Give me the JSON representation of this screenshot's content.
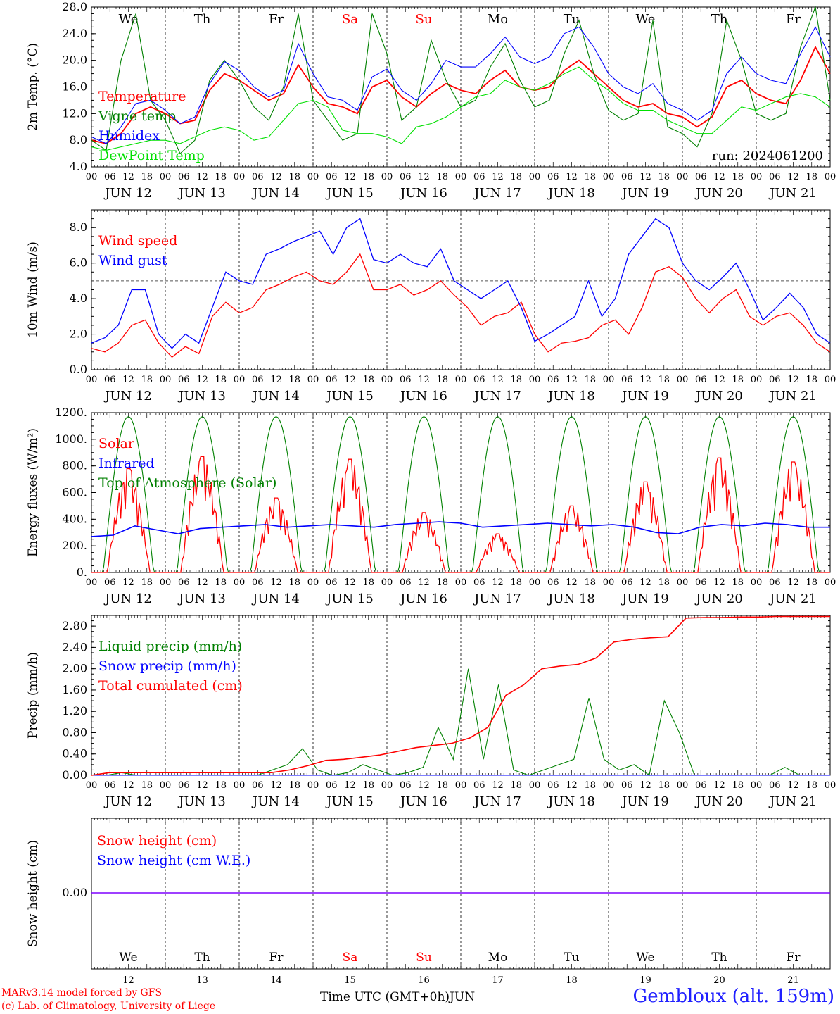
{
  "colors": {
    "red": "#ff0000",
    "green": "#008000",
    "blue": "#0000ff",
    "lightgreen": "#00e000",
    "purple": "#7f00ff"
  },
  "day_labels": [
    "We",
    "Th",
    "Fr",
    "Sa",
    "Su",
    "Mo",
    "Tu",
    "We",
    "Th",
    "Fr"
  ],
  "day_label_colors": [
    "#000",
    "#000",
    "#000",
    "#ff0000",
    "#ff0000",
    "#000",
    "#000",
    "#000",
    "#000",
    "#000"
  ],
  "date_labels": [
    "JUN 12",
    "JUN 13",
    "JUN 14",
    "JUN 15",
    "JUN 16",
    "JUN 17",
    "JUN 18",
    "JUN 19",
    "JUN 20",
    "JUN 21"
  ],
  "hour_ticks": [
    "00",
    "06",
    "12",
    "18"
  ],
  "day_numbers": [
    "12",
    "13",
    "14",
    "15",
    "16",
    "17",
    "18",
    "19",
    "20",
    "21"
  ],
  "footer": {
    "model": "MARv3.14 model forced by GFS",
    "lab": "(c) Lab. of Climatology, University of Liege",
    "time_label": "Time UTC (GMT+0h)",
    "month": "JUN",
    "station": "Gembloux (alt. 159m)"
  },
  "chart_data": [
    {
      "type": "line",
      "ylabel": "2m Temp. (°C)",
      "ylim": [
        4,
        28
      ],
      "yticks": [
        "4.0",
        "8.0",
        "12.0",
        "16.0",
        "20.0",
        "24.0",
        "28.0"
      ],
      "run_label": "run: 2024061200",
      "series": [
        {
          "name": "Temperature",
          "color": "#ff0000",
          "values": [
            8,
            7.5,
            9,
            12,
            13,
            12,
            10.5,
            11,
            15.5,
            18,
            17,
            15.5,
            14,
            15,
            19.3,
            16,
            13.5,
            13,
            12,
            16,
            17,
            14.5,
            13,
            15,
            16.5,
            15.5,
            15,
            17,
            18.5,
            16,
            15.5,
            16,
            18.5,
            20,
            18,
            16,
            14,
            13,
            13.5,
            12,
            11.5,
            10,
            11.5,
            16,
            17,
            15,
            14,
            13.5,
            17,
            22,
            18
          ]
        },
        {
          "name": "Vigne temp",
          "color": "#008000",
          "values": [
            8,
            6.5,
            20,
            27,
            14,
            11,
            6,
            8,
            17,
            20,
            17,
            13,
            11,
            16,
            27,
            14,
            11,
            8,
            9,
            27,
            21,
            11,
            13,
            23,
            17,
            13,
            14,
            19,
            22.5,
            17,
            13,
            14,
            21,
            26,
            18,
            12.5,
            11,
            12,
            26,
            10,
            9,
            7,
            12,
            26,
            20,
            12,
            11,
            12,
            22,
            28,
            14
          ]
        },
        {
          "name": "Humidex",
          "color": "#0000ff",
          "values": [
            8.5,
            7.5,
            10,
            13.5,
            14,
            12.5,
            10.5,
            11.5,
            16.5,
            19.8,
            18.5,
            16,
            14.5,
            15.5,
            22.5,
            18,
            14.5,
            14,
            12.5,
            17.5,
            18.7,
            15.5,
            14,
            16.5,
            20,
            19,
            19,
            21,
            23.5,
            20.5,
            19.5,
            20.5,
            24,
            25,
            22,
            18,
            16,
            15,
            16.5,
            13.5,
            12.5,
            11,
            12.5,
            18,
            20.5,
            18,
            17,
            16.5,
            21,
            25,
            20.5
          ]
        },
        {
          "name": "DewPoint Temp",
          "color": "#00e000",
          "values": [
            7,
            6.5,
            7,
            7.5,
            8,
            8,
            7.5,
            8.5,
            9.5,
            10,
            9.5,
            8,
            8.5,
            11,
            13.5,
            14,
            13,
            9.5,
            9,
            9,
            8.5,
            7.5,
            10,
            10.5,
            11.5,
            13,
            14.5,
            15,
            17,
            16,
            15.5,
            16.5,
            18,
            19,
            17,
            15.5,
            13.5,
            12.5,
            12.5,
            11,
            10,
            9,
            9,
            11,
            13,
            12.5,
            13.5,
            14.5,
            15,
            14.5,
            13
          ]
        }
      ]
    },
    {
      "type": "line",
      "ylabel": "10m Wind (m/s)",
      "ylim": [
        0,
        9
      ],
      "yticks": [
        "0.0",
        "2.0",
        "4.0",
        "6.0",
        "8.0"
      ],
      "reference_line": 5,
      "series": [
        {
          "name": "Wind speed",
          "color": "#ff0000",
          "values": [
            1.2,
            1.0,
            1.5,
            2.5,
            2.8,
            1.5,
            0.7,
            1.3,
            0.9,
            3.0,
            3.8,
            3.2,
            3.5,
            4.5,
            4.8,
            5.2,
            5.5,
            5.0,
            4.8,
            5.5,
            6.5,
            4.5,
            4.5,
            4.8,
            4.2,
            4.5,
            5.0,
            4.2,
            3.5,
            2.5,
            3.0,
            3.2,
            3.8,
            2.0,
            1.0,
            1.5,
            1.6,
            1.8,
            2.5,
            2.8,
            2.0,
            3.5,
            5.5,
            5.8,
            5.2,
            4.0,
            3.2,
            4.0,
            4.5,
            3.0,
            2.5,
            3.0,
            3.2,
            2.5,
            1.5,
            1.0
          ]
        },
        {
          "name": "Wind gust",
          "color": "#0000ff",
          "values": [
            1.5,
            1.8,
            2.5,
            4.5,
            4.5,
            2.0,
            1.2,
            2.0,
            1.5,
            3.5,
            5.5,
            5.0,
            4.8,
            6.5,
            6.8,
            7.2,
            7.5,
            7.8,
            6.5,
            8.0,
            8.5,
            6.2,
            6.0,
            6.5,
            6.0,
            5.8,
            6.8,
            5.0,
            4.5,
            4.0,
            4.5,
            5.0,
            3.5,
            1.6,
            2.0,
            2.5,
            3.0,
            5.0,
            3.0,
            4.0,
            6.5,
            7.5,
            8.5,
            8.0,
            6.0,
            5.0,
            4.5,
            5.2,
            6.0,
            4.5,
            2.8,
            3.5,
            4.3,
            3.5,
            2.0,
            1.5
          ]
        }
      ]
    },
    {
      "type": "line",
      "ylabel": "Energy fluxes (W/m²)",
      "ylim": [
        0,
        1200
      ],
      "yticks": [
        "0.",
        "200.",
        "400.",
        "600.",
        "800.",
        "1000.",
        "1200."
      ],
      "series": [
        {
          "name": "Solar",
          "color": "#ff0000",
          "peaks": [
            780,
            870,
            560,
            850,
            450,
            290,
            500,
            680,
            860,
            830
          ]
        },
        {
          "name": "Infrared",
          "color": "#0000ff",
          "values": [
            270,
            280,
            350,
            320,
            290,
            330,
            340,
            350,
            360,
            340,
            350,
            360,
            350,
            340,
            360,
            370,
            380,
            370,
            340,
            350,
            360,
            370,
            360,
            350,
            360,
            340,
            300,
            290,
            340,
            360,
            350,
            370,
            360,
            340,
            340
          ]
        },
        {
          "name": "Top of Atmosphere (Solar)",
          "color": "#008000",
          "peak": 1170
        }
      ]
    },
    {
      "type": "line",
      "ylabel": "Precip (mm/h)",
      "ylim": [
        0,
        3.0
      ],
      "yticks": [
        "0.00",
        "0.40",
        "0.80",
        "1.20",
        "1.60",
        "2.00",
        "2.40",
        "2.80"
      ],
      "series": [
        {
          "name": "Liquid precip (mm/h)",
          "color": "#008000",
          "values": [
            0,
            0,
            0.05,
            0,
            0,
            0,
            0,
            0,
            0,
            0,
            0,
            0,
            0.1,
            0.2,
            0.5,
            0.1,
            0,
            0.05,
            0.2,
            0.1,
            0,
            0.05,
            0.15,
            0.9,
            0.3,
            2.0,
            0.3,
            1.7,
            0.1,
            0,
            0.1,
            0.2,
            0.3,
            1.45,
            0.3,
            0.1,
            0.2,
            0,
            1.4,
            0.8,
            0,
            0,
            0,
            0,
            0,
            0,
            0.15,
            0,
            0,
            0
          ]
        },
        {
          "name": "Snow precip (mm/h)",
          "color": "#0000ff",
          "values": [
            0,
            0,
            0,
            0,
            0,
            0,
            0,
            0,
            0,
            0,
            0,
            0,
            0,
            0,
            0,
            0,
            0,
            0,
            0,
            0,
            0,
            0,
            0,
            0,
            0,
            0,
            0,
            0,
            0,
            0,
            0,
            0,
            0,
            0,
            0,
            0,
            0,
            0,
            0,
            0,
            0,
            0,
            0,
            0,
            0,
            0,
            0,
            0,
            0,
            0
          ]
        },
        {
          "name": "Total cumulated (cm)",
          "color": "#ff0000",
          "values": [
            0,
            0.05,
            0.05,
            0.05,
            0.05,
            0.05,
            0.05,
            0.05,
            0.05,
            0.05,
            0.05,
            0.1,
            0.18,
            0.28,
            0.3,
            0.34,
            0.38,
            0.45,
            0.52,
            0.56,
            0.6,
            0.7,
            0.9,
            1.5,
            1.7,
            2.0,
            2.05,
            2.08,
            2.2,
            2.5,
            2.55,
            2.58,
            2.6,
            2.95,
            2.96,
            2.96,
            2.97,
            2.97,
            2.98,
            2.98,
            2.98,
            2.98
          ]
        }
      ]
    },
    {
      "type": "line",
      "ylabel": "Snow height (cm)",
      "yticks": [
        "0.00"
      ],
      "series": [
        {
          "name": "Snow height (cm)",
          "color": "#ff0000",
          "values": [
            0,
            0
          ]
        },
        {
          "name": "Snow height (cm W.E.)",
          "color": "#0000ff",
          "values": [
            0,
            0
          ]
        }
      ]
    }
  ]
}
